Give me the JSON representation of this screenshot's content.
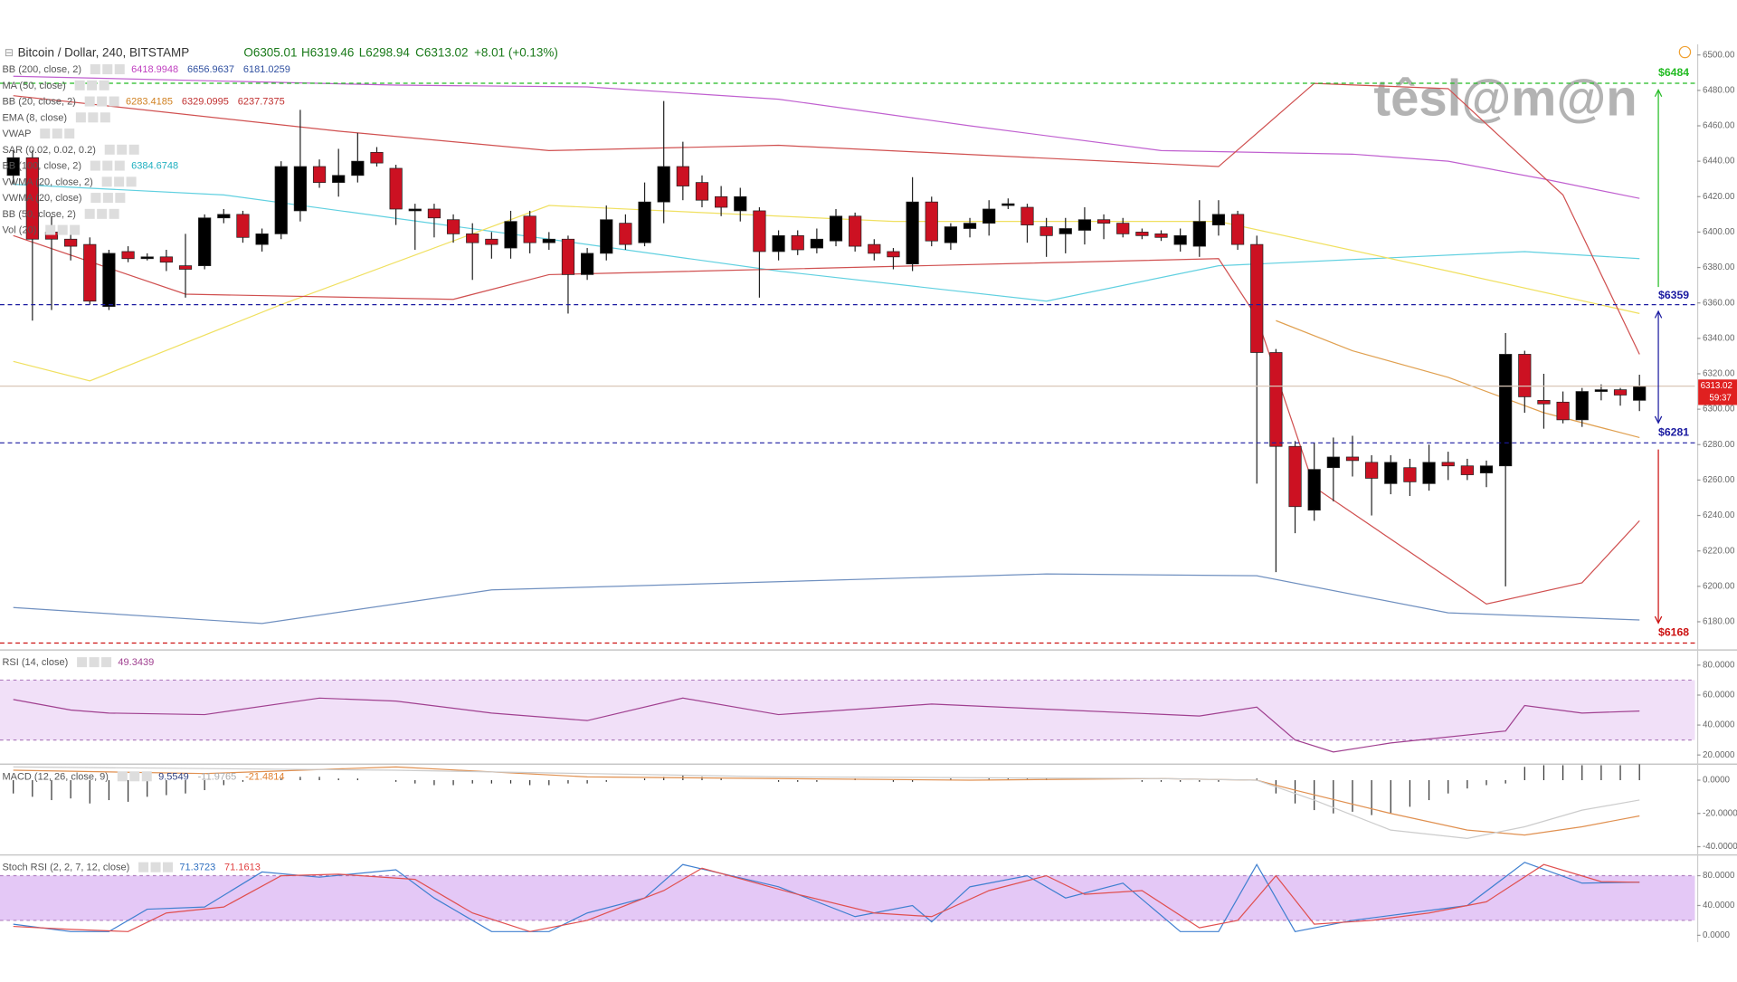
{
  "header": {
    "symbol": "Bitcoin / Dollar, 240, BITSTAMP",
    "ohlc": [
      "O6305.01",
      "H6319.46",
      "L6298.94",
      "C6313.02"
    ],
    "change": "+8.01 (+0.13%)",
    "countdown": "59:37",
    "watermark": "têsl@m@n"
  },
  "chart_data": [
    {
      "type": "candlestick",
      "up_color": "#000000",
      "down_color": "#cc1122",
      "open": [
        6432,
        6442,
        6400,
        6396,
        6393,
        6358,
        6389,
        6385,
        6386,
        6381,
        6381,
        6408,
        6410,
        6393,
        6399,
        6412,
        6437,
        6428,
        6432,
        6445,
        6436,
        6412,
        6413,
        6407,
        6399,
        6396,
        6391,
        6409,
        6394,
        6396,
        6376,
        6388,
        6405,
        6394,
        6417,
        6437,
        6428,
        6420,
        6412,
        6412,
        6389,
        6398,
        6391,
        6395,
        6409,
        6393,
        6389,
        6382,
        6417,
        6394,
        6402,
        6405,
        6415,
        6414,
        6403,
        6399,
        6401,
        6407,
        6405,
        6400,
        6399,
        6393,
        6392,
        6404,
        6410,
        6393,
        6332,
        6279,
        6243,
        6267,
        6273,
        6270,
        6258,
        6267,
        6258,
        6270,
        6268,
        6264,
        6268,
        6331,
        6305,
        6304,
        6294,
        6310,
        6311,
        6305.01
      ],
      "high": [
        6446,
        6446,
        6409,
        6402,
        6397,
        6390,
        6392,
        6388,
        6390,
        6399,
        6410,
        6413,
        6412,
        6402,
        6440,
        6469,
        6441,
        6447,
        6456,
        6448,
        6438,
        6416,
        6416,
        6410,
        6405,
        6400,
        6412,
        6412,
        6400,
        6398,
        6391,
        6415,
        6410,
        6428,
        6474,
        6451,
        6432,
        6426,
        6425,
        6414,
        6401,
        6401,
        6402,
        6413,
        6411,
        6396,
        6391,
        6431,
        6420,
        6405,
        6408,
        6418,
        6419,
        6416,
        6408,
        6408,
        6414,
        6410,
        6408,
        6402,
        6401,
        6402,
        6418,
        6418,
        6412,
        6398,
        6334,
        6282,
        6281,
        6284,
        6285,
        6274,
        6274,
        6272,
        6280,
        6276,
        6272,
        6271,
        6343,
        6333,
        6320,
        6310,
        6312,
        6314,
        6312,
        6319.46
      ],
      "low": [
        6427,
        6350,
        6356,
        6384,
        6359,
        6356,
        6383,
        6384,
        6378,
        6363,
        6379,
        6405,
        6394,
        6389,
        6396,
        6406,
        6425,
        6420,
        6428,
        6437,
        6404,
        6390,
        6397,
        6394,
        6373,
        6385,
        6385,
        6388,
        6390,
        6354,
        6373,
        6384,
        6390,
        6392,
        6405,
        6418,
        6414,
        6409,
        6406,
        6363,
        6384,
        6387,
        6388,
        6392,
        6389,
        6384,
        6379,
        6378,
        6392,
        6390,
        6397,
        6398,
        6413,
        6394,
        6386,
        6388,
        6393,
        6396,
        6397,
        6396,
        6395,
        6389,
        6386,
        6398,
        6390,
        6258,
        6208,
        6230,
        6237,
        6248,
        6262,
        6240,
        6252,
        6251,
        6254,
        6260,
        6260,
        6256,
        6200,
        6298,
        6289,
        6292,
        6290,
        6305,
        6302,
        6298.94
      ],
      "close": [
        6442,
        6396,
        6396,
        6392,
        6361,
        6388,
        6385,
        6386,
        6383,
        6379,
        6408,
        6410,
        6397,
        6399,
        6437,
        6437,
        6428,
        6432,
        6440,
        6439,
        6413,
        6413,
        6408,
        6399,
        6394,
        6393,
        6406,
        6394,
        6396,
        6376,
        6388,
        6407,
        6393,
        6417,
        6437,
        6426,
        6418,
        6414,
        6420,
        6389,
        6398,
        6390,
        6396,
        6409,
        6392,
        6388,
        6386,
        6417,
        6395,
        6403,
        6405,
        6413,
        6416,
        6404,
        6398,
        6402,
        6407,
        6405,
        6399,
        6398,
        6397,
        6398,
        6406,
        6410,
        6393,
        6332,
        6279,
        6245,
        6266,
        6273,
        6271,
        6261,
        6270,
        6259,
        6270,
        6268,
        6263,
        6268,
        6331,
        6307,
        6303,
        6294,
        6310,
        6311,
        6308,
        6313.02
      ],
      "ylim": [
        6165,
        6506
      ],
      "yticks": [
        {
          "value": 6180,
          "label": "6180.00"
        },
        {
          "value": 6200,
          "label": "6200.00"
        },
        {
          "value": 6220,
          "label": "6220.00"
        },
        {
          "value": 6240,
          "label": "6240.00"
        },
        {
          "value": 6260,
          "label": "6260.00"
        },
        {
          "value": 6280,
          "label": "6280.00"
        },
        {
          "value": 6300,
          "label": "6300.00"
        },
        {
          "value": 6320,
          "label": "6320.00"
        },
        {
          "value": 6340,
          "label": "6340.00"
        },
        {
          "value": 6360,
          "label": "6360.00"
        },
        {
          "value": 6380,
          "label": "6380.00"
        },
        {
          "value": 6400,
          "label": "6400.00"
        },
        {
          "value": 6420,
          "label": "6420.00"
        },
        {
          "value": 6440,
          "label": "6440.00"
        },
        {
          "value": 6460,
          "label": "6460.00"
        },
        {
          "value": 6480,
          "label": "6480.00"
        },
        {
          "value": 6500,
          "label": "6500.00"
        }
      ],
      "lines": [
        {
          "color": "#c060d0",
          "x": [
            0,
            20,
            30,
            40,
            50,
            60,
            70,
            75,
            80,
            85
          ],
          "values": [
            6488,
            6483,
            6482,
            6475,
            6460,
            6446,
            6444,
            6440,
            6430,
            6419
          ]
        },
        {
          "color": "#7090c0",
          "x": [
            0,
            13,
            25,
            54,
            65,
            75,
            85
          ],
          "values": [
            6188,
            6179,
            6198,
            6207,
            6206,
            6185,
            6181
          ]
        },
        {
          "color": "#60d0e0",
          "x": [
            0,
            11,
            28,
            40,
            54,
            63,
            79,
            85
          ],
          "values": [
            6427,
            6421,
            6396,
            6378,
            6361,
            6381,
            6389,
            6385
          ]
        },
        {
          "color": "#f0e060",
          "x": [
            0,
            4,
            14,
            28,
            46,
            63,
            75,
            85
          ],
          "values": [
            6327,
            6316,
            6359,
            6415,
            6406,
            6406,
            6378,
            6354
          ]
        },
        {
          "color": "#d05050",
          "x": [
            0,
            17,
            28,
            40,
            63,
            68,
            75,
            81,
            85
          ],
          "values": [
            6477,
            6457,
            6446,
            6449,
            6437,
            6484,
            6481,
            6421,
            6331
          ]
        },
        {
          "color": "#d05050",
          "x": [
            0,
            9,
            23,
            28,
            63,
            65,
            68,
            77,
            82,
            85
          ],
          "values": [
            6398,
            6365,
            6362,
            6376,
            6385,
            6352,
            6256,
            6190,
            6202,
            6237
          ]
        },
        {
          "color": "#e0a050",
          "x": [
            66,
            70,
            75,
            80,
            85
          ],
          "values": [
            6350,
            6333,
            6318,
            6298,
            6284
          ]
        }
      ],
      "levels": [
        {
          "value": 6484,
          "label": "$6484",
          "color": "#22bb22"
        },
        {
          "value": 6359,
          "label": "$6359",
          "color": "#1a1aa0"
        },
        {
          "value": 6281,
          "label": "$6281",
          "color": "#1a1aa0"
        },
        {
          "value": 6168,
          "label": "$6168",
          "color": "#cc1111"
        }
      ],
      "legend": [
        {
          "label": "BB (200, close, 2)",
          "values": [
            6418.9948,
            6656.9637,
            6181.0259
          ],
          "colors": [
            "#c040c0",
            "#3050a0",
            "#3050a0"
          ]
        },
        {
          "label": "MA (50, close)",
          "values": [],
          "colors": []
        },
        {
          "label": "BB (20, close, 2)",
          "values": [
            6283.4185,
            6329.0995,
            6237.7375
          ],
          "colors": [
            "#d08020",
            "#c03030",
            "#c03030"
          ]
        },
        {
          "label": "EMA (8, close)",
          "values": [],
          "colors": []
        },
        {
          "label": "VWAP",
          "values": [],
          "colors": []
        },
        {
          "label": "SAR (0.02, 0.02, 0.2)",
          "values": [],
          "colors": []
        },
        {
          "label": "BB (100, close, 2)",
          "values": [
            6384.6748
          ],
          "colors": [
            "#20b0c0"
          ]
        },
        {
          "label": "VWMA (20, close, 2)",
          "values": [],
          "colors": []
        },
        {
          "label": "VWMA (20, close)",
          "values": [],
          "colors": []
        },
        {
          "label": "BB (50, close, 2)",
          "values": [],
          "colors": []
        },
        {
          "label": "Vol (20)",
          "values": [],
          "colors": []
        }
      ]
    },
    {
      "type": "rsi",
      "label": "RSI (14, close)",
      "legend_values": [
        49.3439
      ],
      "color": "#a04090",
      "band": [
        30,
        70
      ],
      "band_color": "#f1e0f8",
      "x": [
        0,
        3,
        5,
        10,
        16,
        20,
        25,
        30,
        35,
        40,
        48,
        55,
        62,
        65,
        67,
        69,
        72,
        78,
        79,
        82,
        85
      ],
      "values": [
        57,
        50,
        48,
        47,
        58,
        56,
        48,
        43,
        58,
        47,
        54,
        50,
        46,
        52,
        30,
        22,
        28,
        36,
        53,
        48,
        49.34
      ],
      "ylim": [
        15,
        89
      ],
      "yticks": [
        {
          "value": 80,
          "label": "80.0000"
        },
        {
          "value": 60,
          "label": "60.0000"
        },
        {
          "value": 40,
          "label": "40.0000"
        },
        {
          "value": 20,
          "label": "20.0000"
        }
      ]
    },
    {
      "type": "macd",
      "label": "MACD (12, 26, close, 9)",
      "legend_values": [
        9.5549,
        -11.9765,
        -21.4814
      ],
      "legend_colors": [
        "#304080",
        "#aaaaaa",
        "#e08030"
      ],
      "histogram": [
        -8,
        -10,
        -12,
        -11,
        -14,
        -12,
        -13,
        -10,
        -9,
        -8,
        -6,
        -3,
        -1,
        0,
        1,
        2,
        2,
        1,
        1,
        0,
        -1,
        -2,
        -3,
        -3,
        -2,
        -2,
        -2,
        -3,
        -3,
        -2,
        -2,
        -1,
        0,
        1,
        2,
        3,
        2,
        1,
        0,
        0,
        -1,
        -1,
        -1,
        0,
        1,
        0,
        -1,
        -1,
        0,
        1,
        0,
        1,
        1,
        1,
        1,
        0,
        0,
        0,
        0,
        -1,
        -1,
        -1,
        -1,
        -1,
        0,
        1,
        -8,
        -14,
        -18,
        -20,
        -19,
        -21,
        -20,
        -16,
        -12,
        -8,
        -5,
        -3,
        -2,
        8,
        9,
        9,
        9,
        9,
        9,
        9.5549
      ],
      "hist_color": "#333333",
      "lines": [
        {
          "color": "#e09050",
          "x": [
            0,
            10,
            20,
            30,
            40,
            50,
            60,
            65,
            67,
            72,
            76,
            79,
            82,
            85
          ],
          "values": [
            6,
            4,
            8,
            2,
            1,
            0,
            1,
            0,
            -6,
            -20,
            -30,
            -33,
            -28,
            -21.48
          ]
        },
        {
          "color": "#cccccc",
          "x": [
            0,
            20,
            40,
            60,
            65,
            68,
            72,
            76,
            79,
            82,
            85
          ],
          "values": [
            8,
            6,
            2,
            1,
            0,
            -12,
            -30,
            -35,
            -28,
            -18,
            -11.98
          ]
        }
      ],
      "ylim": [
        -44,
        9.3
      ],
      "yticks": [
        {
          "value": 0,
          "label": "0.0000"
        },
        {
          "value": -20,
          "label": "-20.0000"
        },
        {
          "value": -40,
          "label": "-40.0000"
        }
      ]
    },
    {
      "type": "stoch",
      "label": "Stoch RSI (2, 2, 7, 12, close)",
      "legend_values": [
        71.3723,
        71.1613
      ],
      "legend_colors": [
        "#3070c0",
        "#e04040"
      ],
      "band": [
        20,
        80
      ],
      "band_color": "#e4c8f6",
      "lines": [
        {
          "color": "#4080d0",
          "x": [
            0,
            3,
            5,
            7,
            10,
            13,
            16,
            20,
            22,
            25,
            28,
            30,
            33,
            35,
            40,
            44,
            47,
            48,
            50,
            53,
            55,
            58,
            61,
            63,
            65,
            67,
            70,
            73,
            76,
            79,
            82,
            85
          ],
          "values": [
            15,
            5,
            5,
            35,
            38,
            85,
            78,
            88,
            50,
            5,
            5,
            30,
            50,
            95,
            65,
            25,
            40,
            18,
            65,
            80,
            50,
            70,
            5,
            5,
            95,
            5,
            20,
            30,
            40,
            98,
            70,
            71.37
          ]
        },
        {
          "color": "#e05050",
          "x": [
            0,
            3,
            6,
            8,
            11,
            14,
            17,
            21,
            24,
            27,
            30,
            34,
            36,
            41,
            45,
            48,
            51,
            54,
            56,
            59,
            62,
            64,
            66,
            68,
            71,
            74,
            77,
            80,
            83,
            85
          ],
          "values": [
            12,
            8,
            5,
            30,
            38,
            80,
            82,
            75,
            30,
            5,
            20,
            60,
            90,
            55,
            30,
            25,
            60,
            80,
            55,
            60,
            10,
            20,
            80,
            15,
            20,
            30,
            45,
            95,
            72,
            71.16
          ]
        }
      ],
      "ylim": [
        -9,
        107
      ],
      "yticks": [
        {
          "value": 80,
          "label": "80.0000"
        },
        {
          "value": 40,
          "label": "40.0000"
        },
        {
          "value": 0,
          "label": "0.0000"
        }
      ]
    }
  ]
}
